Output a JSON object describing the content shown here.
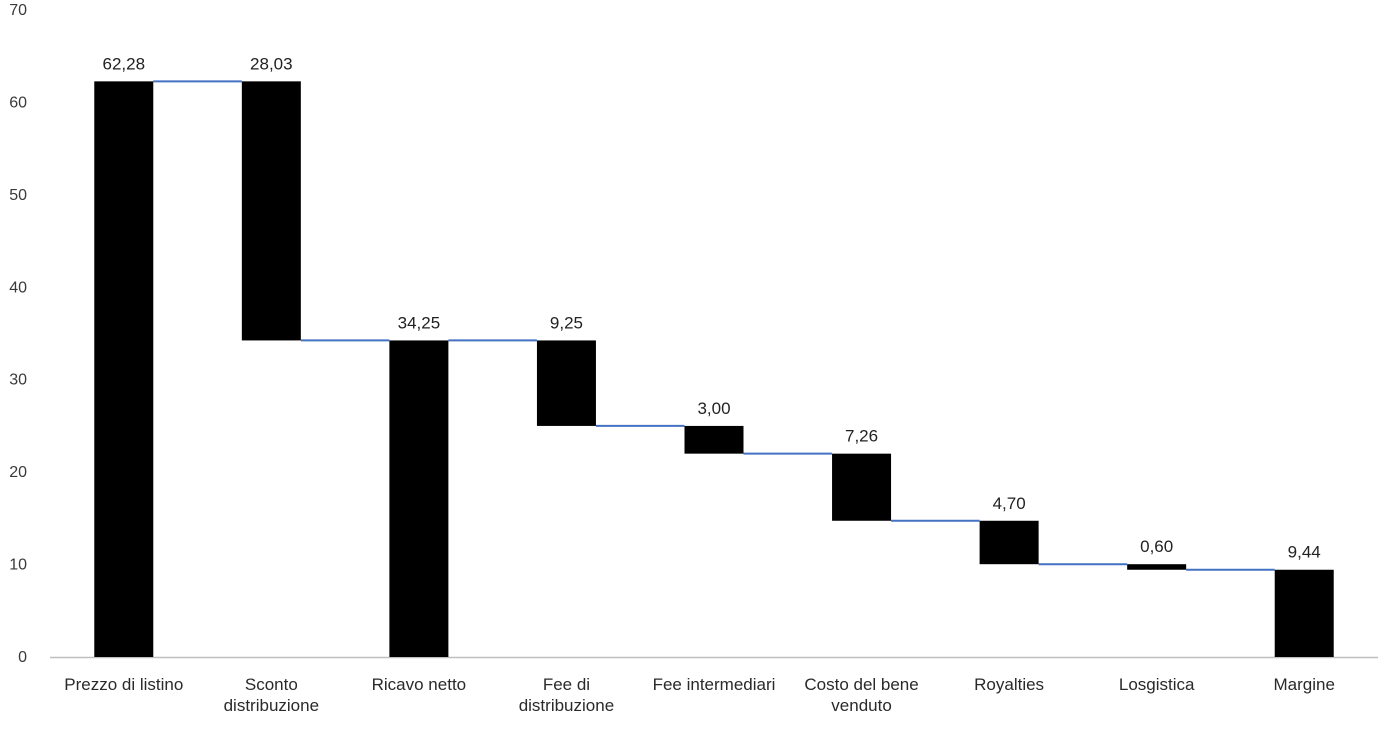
{
  "chart_data": {
    "type": "bar",
    "subtype": "waterfall",
    "title": "",
    "xlabel": "",
    "ylabel": "",
    "ylim": [
      0,
      70
    ],
    "y_ticks": [
      "0",
      "10",
      "20",
      "30",
      "40",
      "50",
      "60",
      "70"
    ],
    "grid": false,
    "legend": "none",
    "bar_color": "#000000",
    "connector_color": "#4472C4",
    "axis_color": "#bfbfbf",
    "categories": [
      [
        "Prezzo di listino"
      ],
      [
        "Sconto",
        "distribuzione"
      ],
      [
        "Ricavo netto"
      ],
      [
        "Fee di",
        "distribuzione"
      ],
      [
        "Fee intermediari"
      ],
      [
        "Costo del bene",
        "venduto"
      ],
      [
        "Royalties"
      ],
      [
        "Losgistica"
      ],
      [
        "Margine"
      ]
    ],
    "bars": [
      {
        "start": 0,
        "end": 62.28,
        "label": "62,28"
      },
      {
        "start": 62.28,
        "end": 34.25,
        "label": "28,03"
      },
      {
        "start": 0,
        "end": 34.25,
        "label": "34,25"
      },
      {
        "start": 34.25,
        "end": 25.0,
        "label": "9,25"
      },
      {
        "start": 25.0,
        "end": 22.0,
        "label": "3,00"
      },
      {
        "start": 22.0,
        "end": 14.74,
        "label": "7,26"
      },
      {
        "start": 14.74,
        "end": 10.04,
        "label": "4,70"
      },
      {
        "start": 10.04,
        "end": 9.44,
        "label": "0,60"
      },
      {
        "start": 0,
        "end": 9.44,
        "label": "9,44"
      }
    ]
  }
}
